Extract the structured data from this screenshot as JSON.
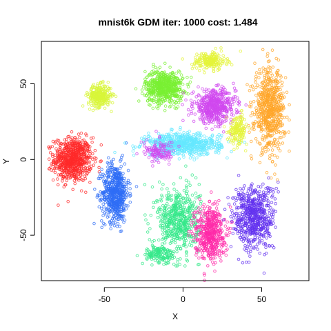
{
  "chart_data": {
    "type": "scatter",
    "title": "mnist6k GDM iter: 1000 cost: 1.484",
    "xlabel": "X",
    "ylabel": "Y",
    "xlim": [
      -90,
      80
    ],
    "ylim": [
      -80,
      78
    ],
    "xticks": [
      -50,
      0,
      50
    ],
    "yticks": [
      -50,
      0,
      50
    ],
    "grid": false,
    "legend": "none",
    "point_size": 1000,
    "clusters": [
      {
        "color": "#ff2a2a",
        "center": [
          -70,
          0
        ],
        "spread": [
          10,
          12
        ],
        "points": 700
      },
      {
        "color": "#2f6df6",
        "center": [
          -43,
          -22
        ],
        "spread": [
          7,
          16
        ],
        "points": 600
      },
      {
        "color": "#d8f53a",
        "center": [
          -53,
          42
        ],
        "spread": [
          6,
          6
        ],
        "points": 300
      },
      {
        "color": "#7af033",
        "center": [
          -12,
          48
        ],
        "spread": [
          10,
          9
        ],
        "points": 600
      },
      {
        "color": "#e4f43a",
        "center": [
          17,
          65
        ],
        "spread": [
          9,
          5
        ],
        "points": 200
      },
      {
        "color": "#d048ef",
        "center": [
          20,
          35
        ],
        "spread": [
          11,
          9
        ],
        "points": 550
      },
      {
        "color": "#ffa52a",
        "center": [
          55,
          33
        ],
        "spread": [
          8,
          22
        ],
        "points": 650
      },
      {
        "color": "#66e8ff",
        "center": [
          0,
          10
        ],
        "spread": [
          20,
          6
        ],
        "points": 650
      },
      {
        "color": "#e4f43a",
        "center": [
          35,
          20
        ],
        "spread": [
          5,
          8
        ],
        "points": 150
      },
      {
        "color": "#34e88a",
        "center": [
          -3,
          -40
        ],
        "spread": [
          11,
          18
        ],
        "points": 550
      },
      {
        "color": "#ff2aa8",
        "center": [
          17,
          -48
        ],
        "spread": [
          8,
          15
        ],
        "points": 500
      },
      {
        "color": "#6230ef",
        "center": [
          45,
          -38
        ],
        "spread": [
          11,
          18
        ],
        "points": 600
      },
      {
        "color": "#d048ef",
        "center": [
          -15,
          5
        ],
        "spread": [
          8,
          6
        ],
        "points": 120
      },
      {
        "color": "#34e88a",
        "center": [
          -15,
          -63
        ],
        "spread": [
          9,
          5
        ],
        "points": 150
      }
    ]
  }
}
